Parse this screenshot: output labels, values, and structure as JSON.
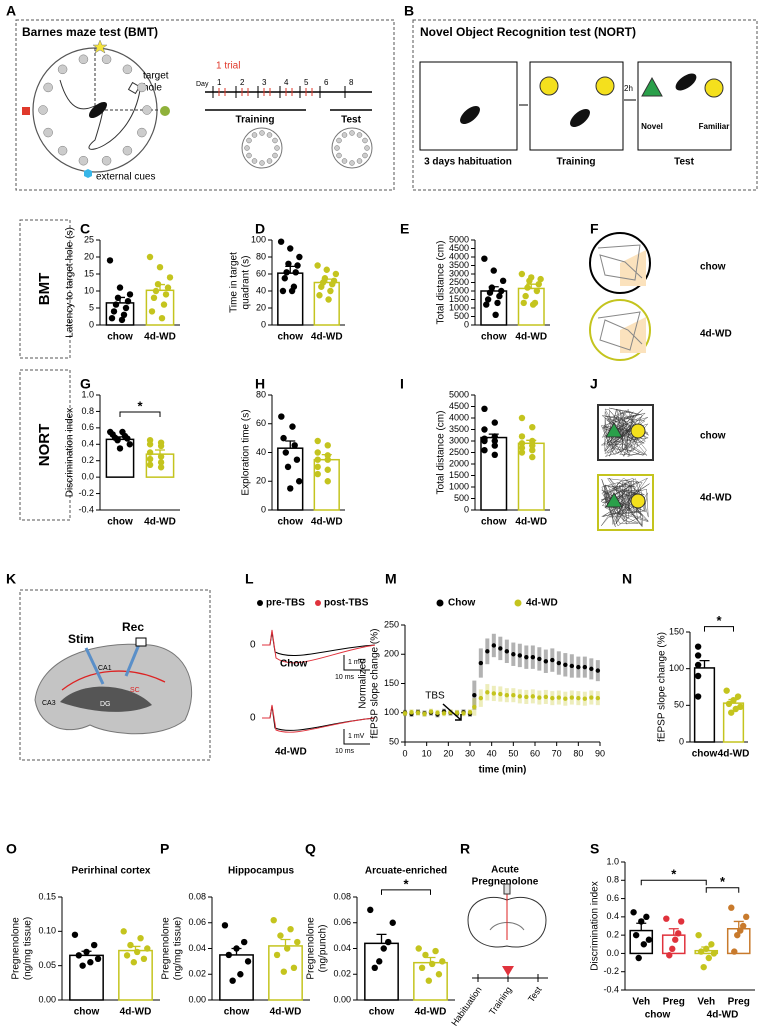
{
  "panel_letters": [
    "A",
    "B",
    "C",
    "D",
    "E",
    "F",
    "G",
    "H",
    "I",
    "J",
    "K",
    "L",
    "M",
    "N",
    "O",
    "P",
    "Q",
    "R",
    "S"
  ],
  "panel_A": {
    "title": "Barnes maze test (BMT)",
    "target_hole": [
      "target",
      "hole"
    ],
    "external_cues": "external cues",
    "trial": "1 trial",
    "day": "Day",
    "days": [
      "1",
      "2",
      "3",
      "4",
      "5",
      "6",
      "8"
    ],
    "training": "Training",
    "test": "Test"
  },
  "panel_B": {
    "title": "Novel Object Recognition test (NORT)",
    "habituation": "3 days habituation",
    "training": "Training",
    "interval": "2h",
    "novel": "Novel",
    "familiar": "Familiar",
    "test": "Test"
  },
  "row_labels": [
    "BMT",
    "NORT"
  ],
  "panel_F": {
    "labels": [
      "chow",
      "4d-WD"
    ]
  },
  "panel_J": {
    "labels": [
      "chow",
      "4d-WD"
    ]
  },
  "panel_K": {
    "stim": "Stim",
    "rec": "Rec",
    "regions": [
      "CA1",
      "CA3",
      "DG",
      "SC"
    ]
  },
  "panel_L": {
    "legend": [
      "pre-TBS",
      "post-TBS"
    ],
    "traces": [
      {
        "zero": "0",
        "label": "Chow",
        "scale_v": "1 mV",
        "scale_t": "10 ms"
      },
      {
        "zero": "0",
        "label": "4d-WD",
        "scale_v": "1 mV",
        "scale_t": "10 ms"
      }
    ]
  },
  "panel_R": {
    "title": [
      "Acute",
      "Pregnenolone"
    ],
    "timeline": [
      "Habituation",
      "Training",
      "Test"
    ]
  },
  "chart_data": [
    {
      "type": "bar",
      "ylabel": [
        "Latency to target hole (s)"
      ],
      "categories": [
        "chow",
        "4d-WD"
      ],
      "colors": [
        "#000000",
        "#c4c41e"
      ],
      "values": [
        6.5,
        10.2
      ],
      "errors": [
        1.6,
        1.7
      ],
      "points": [
        [
          19,
          11,
          9,
          8,
          7,
          6,
          5,
          4,
          3,
          2,
          1.5
        ],
        [
          20,
          17,
          14,
          12,
          11,
          10,
          9,
          8,
          6,
          4,
          2
        ]
      ],
      "ylim": [
        0,
        25
      ],
      "yticks": [
        0,
        5,
        10,
        15,
        20,
        25
      ]
    },
    {
      "type": "bar",
      "ylabel": [
        "Time in target",
        "quadrant (s)"
      ],
      "categories": [
        "chow",
        "4d-WD"
      ],
      "colors": [
        "#000000",
        "#c4c41e"
      ],
      "values": [
        61,
        50
      ],
      "errors": [
        8,
        4
      ],
      "points": [
        [
          98,
          90,
          80,
          72,
          70,
          62,
          62,
          55,
          45,
          40,
          40
        ],
        [
          70,
          65,
          60,
          55,
          52,
          50,
          48,
          45,
          40,
          35,
          30
        ]
      ],
      "ylim": [
        0,
        100
      ],
      "yticks": [
        0,
        20,
        40,
        60,
        80,
        100
      ]
    },
    {
      "type": "bar",
      "ylabel": [
        "Total distance (cm)"
      ],
      "categories": [
        "chow",
        "4d-WD"
      ],
      "colors": [
        "#000000",
        "#c4c41e"
      ],
      "values": [
        2000,
        2150
      ],
      "errors": [
        250,
        250
      ],
      "points": [
        [
          3900,
          3200,
          2600,
          2200,
          2000,
          1900,
          1700,
          1500,
          1300,
          1200,
          600
        ],
        [
          3000,
          2800,
          2700,
          2600,
          2400,
          2200,
          2000,
          1700,
          1300,
          1300,
          1200
        ]
      ],
      "ylim": [
        0,
        5000
      ],
      "yticks": [
        0,
        500,
        1000,
        1500,
        2000,
        2500,
        3000,
        3500,
        4000,
        4500,
        5000
      ]
    },
    {
      "type": "bar",
      "ylabel": [
        "Discrimination index"
      ],
      "categories": [
        "chow",
        "4d-WD"
      ],
      "colors": [
        "#000000",
        "#c4c41e"
      ],
      "values": [
        0.46,
        0.28
      ],
      "errors": [
        0.03,
        0.05
      ],
      "points": [
        [
          0.55,
          0.55,
          0.52,
          0.5,
          0.48,
          0.47,
          0.45,
          0.4,
          0.35
        ],
        [
          0.45,
          0.42,
          0.4,
          0.38,
          0.3,
          0.25,
          0.22,
          0.18,
          0.15,
          0.12
        ]
      ],
      "ylim": [
        -0.4,
        1
      ],
      "yticks": [
        -0.4,
        -0.2,
        {
          "value": 0,
          "label": "0.0"
        },
        0.2,
        0.4,
        0.6,
        0.8,
        {
          "value": 1,
          "label": "1.0"
        }
      ],
      "significance": [
        {
          "label": "*",
          "between": [
            0,
            1
          ]
        }
      ]
    },
    {
      "type": "bar",
      "ylabel": [
        "Exploration time (s)"
      ],
      "categories": [
        "chow",
        "4d-WD"
      ],
      "colors": [
        "#000000",
        "#c4c41e"
      ],
      "values": [
        43,
        35
      ],
      "errors": [
        5,
        3.5
      ],
      "points": [
        [
          65,
          58,
          50,
          45,
          40,
          35,
          30,
          20,
          15
        ],
        [
          48,
          45,
          40,
          38,
          35,
          35,
          30,
          28,
          25,
          20
        ]
      ],
      "ylim": [
        0,
        80
      ],
      "yticks": [
        0,
        20,
        40,
        60,
        80
      ]
    },
    {
      "type": "bar",
      "ylabel": [
        "Total distance (cm)"
      ],
      "categories": [
        "chow",
        "4d-WD"
      ],
      "colors": [
        "#000000",
        "#c4c41e"
      ],
      "values": [
        3150,
        2900
      ],
      "errors": [
        150,
        130
      ],
      "points": [
        [
          4400,
          3800,
          3500,
          3200,
          3100,
          3000,
          3000,
          2800,
          2600,
          2400
        ],
        [
          4000,
          3600,
          3200,
          3000,
          2900,
          2800,
          2700,
          2600,
          2500,
          2300
        ]
      ],
      "ylim": [
        0,
        5000
      ],
      "yticks": [
        0,
        500,
        1000,
        1500,
        2000,
        2500,
        3000,
        3500,
        4000,
        4500,
        5000
      ]
    },
    {
      "type": "line",
      "ylabel": [
        "Normalized",
        "fEPSP slope change (%)"
      ],
      "xlabel": "time (min)",
      "annotation": "TBS",
      "x": [
        0,
        3,
        6,
        9,
        12,
        15,
        18,
        21,
        24,
        27,
        30,
        32,
        35,
        38,
        41,
        44,
        47,
        50,
        53,
        56,
        59,
        62,
        65,
        68,
        71,
        74,
        77,
        80,
        83,
        86,
        89
      ],
      "series": [
        {
          "name": "Chow",
          "color": "#000000",
          "values": [
            100,
            98,
            101,
            99,
            100,
            97,
            102,
            100,
            99,
            101,
            98,
            130,
            185,
            205,
            215,
            210,
            205,
            200,
            198,
            195,
            195,
            192,
            188,
            190,
            185,
            182,
            180,
            178,
            178,
            175,
            172
          ],
          "errors": [
            5,
            5,
            5,
            5,
            5,
            5,
            5,
            5,
            5,
            5,
            5,
            25,
            25,
            22,
            20,
            20,
            20,
            20,
            20,
            20,
            20,
            20,
            20,
            20,
            20,
            20,
            20,
            18,
            18,
            18,
            18
          ]
        },
        {
          "name": "4d-WD",
          "color": "#c4c41e",
          "values": [
            99,
            101,
            100,
            98,
            102,
            100,
            99,
            101,
            100,
            99,
            101,
            110,
            125,
            135,
            133,
            132,
            130,
            130,
            128,
            127,
            128,
            126,
            127,
            125,
            126,
            124,
            126,
            125,
            124,
            126,
            125
          ],
          "errors": [
            5,
            5,
            5,
            5,
            5,
            5,
            5,
            5,
            5,
            5,
            5,
            15,
            15,
            14,
            13,
            13,
            12,
            12,
            12,
            12,
            12,
            12,
            12,
            12,
            12,
            12,
            12,
            12,
            12,
            12,
            12
          ]
        }
      ],
      "xlim": [
        0,
        90
      ],
      "xticks": [
        0,
        10,
        20,
        30,
        40,
        50,
        60,
        70,
        80,
        90
      ],
      "ylim": [
        50,
        250
      ],
      "yticks": [
        50,
        100,
        150,
        200,
        250
      ]
    },
    {
      "type": "bar",
      "ylabel": [
        "fEPSP slope change (%)"
      ],
      "categories": [
        "chow",
        "4d-WD"
      ],
      "colors": [
        "#000000",
        "#c4c41e"
      ],
      "values": [
        101,
        53
      ],
      "errors": [
        10,
        5
      ],
      "points": [
        [
          130,
          118,
          105,
          90,
          62
        ],
        [
          70,
          62,
          57,
          52,
          48,
          45,
          40
        ]
      ],
      "ylim": [
        0,
        150
      ],
      "yticks": [
        0,
        50,
        100,
        150
      ],
      "significance": [
        {
          "label": "*",
          "between": [
            0,
            1
          ]
        }
      ]
    },
    {
      "type": "bar",
      "title": "Perirhinal cortex",
      "ylabel": [
        "Pregnenolone",
        "(ng/mg tissue)"
      ],
      "categories": [
        "chow",
        "4d-WD"
      ],
      "colors": [
        "#000000",
        "#c4c41e"
      ],
      "values": [
        0.065,
        0.072
      ],
      "errors": [
        0.006,
        0.006
      ],
      "points": [
        [
          0.095,
          0.08,
          0.07,
          0.065,
          0.06,
          0.055,
          0.05
        ],
        [
          0.1,
          0.09,
          0.08,
          0.075,
          0.07,
          0.065,
          0.06,
          0.055
        ]
      ],
      "ylim": [
        0,
        0.15
      ],
      "yticks": [
        {
          "value": 0,
          "label": "0.00"
        },
        0.05,
        {
          "value": 0.1,
          "label": "0.10"
        },
        0.15
      ]
    },
    {
      "type": "bar",
      "title": "Hippocampus",
      "ylabel": [
        "Pregnenolone",
        "(ng/mg tissue)"
      ],
      "categories": [
        "chow",
        "4d-WD"
      ],
      "colors": [
        "#000000",
        "#c4c41e"
      ],
      "values": [
        0.035,
        0.042
      ],
      "errors": [
        0.005,
        0.005
      ],
      "points": [
        [
          0.058,
          0.045,
          0.04,
          0.035,
          0.03,
          0.02,
          0.015
        ],
        [
          0.062,
          0.055,
          0.05,
          0.045,
          0.04,
          0.035,
          0.025,
          0.022
        ]
      ],
      "ylim": [
        0,
        0.08
      ],
      "yticks": [
        {
          "value": 0,
          "label": "0.00"
        },
        0.02,
        0.04,
        0.06,
        0.08
      ]
    },
    {
      "type": "bar",
      "title": "Arcuate-enriched",
      "ylabel": [
        "Pregnenolone",
        "(ng/punch)"
      ],
      "categories": [
        "chow",
        "4d-WD"
      ],
      "colors": [
        "#000000",
        "#c4c41e"
      ],
      "values": [
        0.044,
        0.029
      ],
      "errors": [
        0.007,
        0.004
      ],
      "points": [
        [
          0.07,
          0.06,
          0.045,
          0.04,
          0.03,
          0.025
        ],
        [
          0.04,
          0.038,
          0.035,
          0.03,
          0.028,
          0.025,
          0.02,
          0.015
        ]
      ],
      "ylim": [
        0,
        0.08
      ],
      "yticks": [
        {
          "value": 0,
          "label": "0.00"
        },
        0.02,
        0.04,
        0.06,
        0.08
      ],
      "significance": [
        {
          "label": "*",
          "between": [
            0,
            1
          ]
        }
      ]
    },
    {
      "type": "bar",
      "ylabel": [
        "Discrimination index"
      ],
      "categories": [
        "Veh",
        "Preg",
        "Veh",
        "Preg"
      ],
      "group_labels": [
        "chow",
        "4d-WD"
      ],
      "colors": [
        "#000000",
        "#e0323c",
        "#c4c41e",
        "#c87a2c"
      ],
      "values": [
        0.25,
        0.2,
        0.03,
        0.27
      ],
      "errors": [
        0.08,
        0.07,
        0.04,
        0.08
      ],
      "points": [
        [
          0.45,
          0.4,
          0.35,
          0.2,
          0.15,
          0.1,
          -0.05
        ],
        [
          0.38,
          0.35,
          0.22,
          0.15,
          0.05,
          -0.02
        ],
        [
          0.2,
          0.1,
          0.05,
          0.02,
          0,
          -0.05,
          -0.15
        ],
        [
          0.5,
          0.4,
          0.3,
          0.25,
          0.2,
          0.02
        ]
      ],
      "ylim": [
        -0.4,
        1
      ],
      "yticks": [
        -0.4,
        -0.2,
        {
          "value": 0,
          "label": "0.0"
        },
        0.2,
        0.4,
        0.6,
        0.8,
        {
          "value": 1,
          "label": "1.0"
        }
      ],
      "significance": [
        {
          "label": "*",
          "between": [
            0,
            2
          ]
        },
        {
          "label": "*",
          "between": [
            2,
            3
          ]
        }
      ]
    }
  ]
}
